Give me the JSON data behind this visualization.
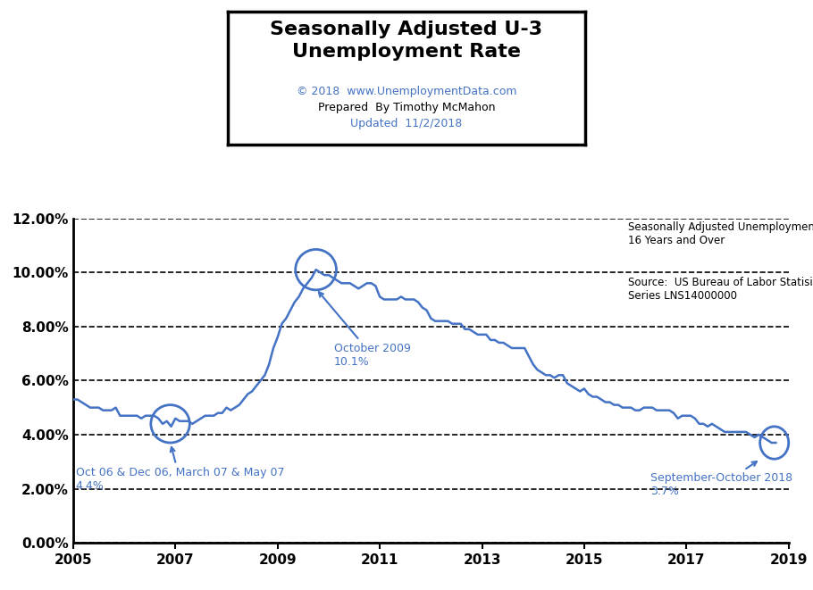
{
  "title_line1": "Seasonally Adjusted U-3",
  "title_line2": "Unemployment Rate",
  "subtitle1": "© 2018  www.UnemploymentData.com",
  "subtitle2": "Prepared  By Timothy McMahon",
  "subtitle3": "Updated  11/2/2018",
  "right_text1": "Seasonally Adjusted Unemployment Rate",
  "right_text2": "16 Years and Over",
  "right_text3": "Source:  US Bureau of Labor Statisitcs",
  "right_text4": "Series LNS14000000",
  "line_color": "#4472C4",
  "background_color": "#FFFFFF",
  "xlim": [
    2005,
    2019
  ],
  "ylim": [
    0.0,
    0.12
  ],
  "yticks": [
    0.0,
    0.02,
    0.04,
    0.06,
    0.08,
    0.1,
    0.12
  ],
  "ytick_labels": [
    "0.00%",
    "2.00%",
    "4.00%",
    "6.00%",
    "8.00%",
    "10.00%",
    "12.00%"
  ],
  "xticks": [
    2005,
    2007,
    2009,
    2011,
    2013,
    2015,
    2017,
    2019
  ],
  "data_x": [
    2005.0,
    2005.083,
    2005.167,
    2005.25,
    2005.333,
    2005.417,
    2005.5,
    2005.583,
    2005.667,
    2005.75,
    2005.833,
    2005.917,
    2006.0,
    2006.083,
    2006.167,
    2006.25,
    2006.333,
    2006.417,
    2006.5,
    2006.583,
    2006.667,
    2006.75,
    2006.833,
    2006.917,
    2007.0,
    2007.083,
    2007.167,
    2007.25,
    2007.333,
    2007.417,
    2007.5,
    2007.583,
    2007.667,
    2007.75,
    2007.833,
    2007.917,
    2008.0,
    2008.083,
    2008.167,
    2008.25,
    2008.333,
    2008.417,
    2008.5,
    2008.583,
    2008.667,
    2008.75,
    2008.833,
    2008.917,
    2009.0,
    2009.083,
    2009.167,
    2009.25,
    2009.333,
    2009.417,
    2009.5,
    2009.583,
    2009.667,
    2009.75,
    2009.833,
    2009.917,
    2010.0,
    2010.083,
    2010.167,
    2010.25,
    2010.333,
    2010.417,
    2010.5,
    2010.583,
    2010.667,
    2010.75,
    2010.833,
    2010.917,
    2011.0,
    2011.083,
    2011.167,
    2011.25,
    2011.333,
    2011.417,
    2011.5,
    2011.583,
    2011.667,
    2011.75,
    2011.833,
    2011.917,
    2012.0,
    2012.083,
    2012.167,
    2012.25,
    2012.333,
    2012.417,
    2012.5,
    2012.583,
    2012.667,
    2012.75,
    2012.833,
    2012.917,
    2013.0,
    2013.083,
    2013.167,
    2013.25,
    2013.333,
    2013.417,
    2013.5,
    2013.583,
    2013.667,
    2013.75,
    2013.833,
    2013.917,
    2014.0,
    2014.083,
    2014.167,
    2014.25,
    2014.333,
    2014.417,
    2014.5,
    2014.583,
    2014.667,
    2014.75,
    2014.833,
    2014.917,
    2015.0,
    2015.083,
    2015.167,
    2015.25,
    2015.333,
    2015.417,
    2015.5,
    2015.583,
    2015.667,
    2015.75,
    2015.833,
    2015.917,
    2016.0,
    2016.083,
    2016.167,
    2016.25,
    2016.333,
    2016.417,
    2016.5,
    2016.583,
    2016.667,
    2016.75,
    2016.833,
    2016.917,
    2017.0,
    2017.083,
    2017.167,
    2017.25,
    2017.333,
    2017.417,
    2017.5,
    2017.583,
    2017.667,
    2017.75,
    2017.833,
    2017.917,
    2018.0,
    2018.083,
    2018.167,
    2018.25,
    2018.333,
    2018.417,
    2018.5,
    2018.583,
    2018.667,
    2018.75
  ],
  "data_y": [
    0.053,
    0.053,
    0.052,
    0.051,
    0.05,
    0.05,
    0.05,
    0.049,
    0.049,
    0.049,
    0.05,
    0.047,
    0.047,
    0.047,
    0.047,
    0.047,
    0.046,
    0.047,
    0.047,
    0.047,
    0.046,
    0.044,
    0.045,
    0.043,
    0.046,
    0.045,
    0.045,
    0.045,
    0.044,
    0.045,
    0.046,
    0.047,
    0.047,
    0.047,
    0.048,
    0.048,
    0.05,
    0.049,
    0.05,
    0.051,
    0.053,
    0.055,
    0.056,
    0.058,
    0.06,
    0.062,
    0.066,
    0.072,
    0.076,
    0.081,
    0.083,
    0.086,
    0.089,
    0.091,
    0.094,
    0.096,
    0.098,
    0.101,
    0.1,
    0.099,
    0.099,
    0.098,
    0.097,
    0.096,
    0.096,
    0.096,
    0.095,
    0.094,
    0.095,
    0.096,
    0.096,
    0.095,
    0.091,
    0.09,
    0.09,
    0.09,
    0.09,
    0.091,
    0.09,
    0.09,
    0.09,
    0.089,
    0.087,
    0.086,
    0.083,
    0.082,
    0.082,
    0.082,
    0.082,
    0.081,
    0.081,
    0.081,
    0.079,
    0.079,
    0.078,
    0.077,
    0.077,
    0.077,
    0.075,
    0.075,
    0.074,
    0.074,
    0.073,
    0.072,
    0.072,
    0.072,
    0.072,
    0.069,
    0.066,
    0.064,
    0.063,
    0.062,
    0.062,
    0.061,
    0.062,
    0.062,
    0.059,
    0.058,
    0.057,
    0.056,
    0.057,
    0.055,
    0.054,
    0.054,
    0.053,
    0.052,
    0.052,
    0.051,
    0.051,
    0.05,
    0.05,
    0.05,
    0.049,
    0.049,
    0.05,
    0.05,
    0.05,
    0.049,
    0.049,
    0.049,
    0.049,
    0.048,
    0.046,
    0.047,
    0.047,
    0.047,
    0.046,
    0.044,
    0.044,
    0.043,
    0.044,
    0.043,
    0.042,
    0.041,
    0.041,
    0.041,
    0.041,
    0.041,
    0.041,
    0.04,
    0.039,
    0.04,
    0.039,
    0.038,
    0.037,
    0.037
  ]
}
